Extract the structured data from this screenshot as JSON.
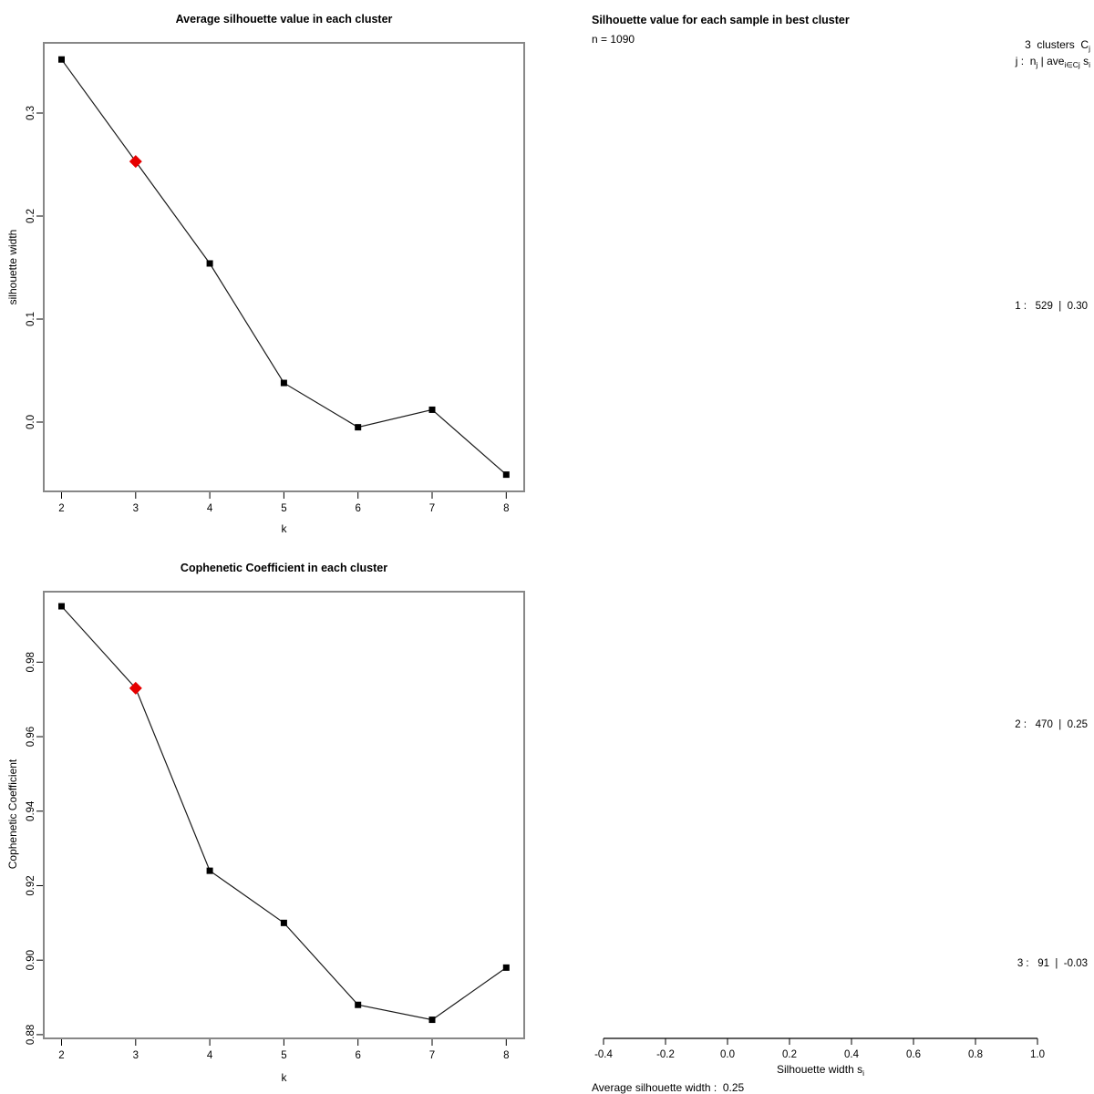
{
  "figure": {
    "background": "#ffffff",
    "line_color": "#1a1a1a",
    "point_color": "#000000",
    "highlight_color": "#e60000",
    "box_color": "#878787"
  },
  "chart_data": [
    {
      "id": "avg-silhouette",
      "type": "line",
      "title": "Average silhouette value in each cluster",
      "xlabel": "k",
      "ylabel": "silhouette width",
      "x": [
        2,
        3,
        4,
        5,
        6,
        7,
        8
      ],
      "y": [
        0.352,
        0.253,
        0.154,
        0.038,
        -0.005,
        0.012,
        -0.051
      ],
      "highlight_index": 1,
      "highlight_x": 3,
      "marker": "filled-square",
      "highlight_marker": "filled-diamond",
      "xticks": [
        2,
        3,
        4,
        5,
        6,
        7,
        8
      ],
      "xtick_labels": [
        "2",
        "3",
        "4",
        "5",
        "6",
        "7",
        "8"
      ],
      "yticks": [
        0.0,
        0.1,
        0.2,
        0.3
      ],
      "ytick_labels": [
        "0.0",
        "0.1",
        "0.2",
        "0.3"
      ],
      "xlim": [
        1.76,
        8.24
      ],
      "ylim": [
        -0.067,
        0.368
      ],
      "grid": false
    },
    {
      "id": "cophenetic",
      "type": "line",
      "title": "Cophenetic Coefficient in each cluster",
      "xlabel": "k",
      "ylabel": "Cophenetic Coefficient",
      "x": [
        2,
        3,
        4,
        5,
        6,
        7,
        8
      ],
      "y": [
        0.995,
        0.973,
        0.924,
        0.91,
        0.888,
        0.884,
        0.898
      ],
      "highlight_index": 1,
      "highlight_x": 3,
      "marker": "filled-square",
      "highlight_marker": "filled-diamond",
      "xticks": [
        2,
        3,
        4,
        5,
        6,
        7,
        8
      ],
      "xtick_labels": [
        "2",
        "3",
        "4",
        "5",
        "6",
        "7",
        "8"
      ],
      "yticks": [
        0.88,
        0.9,
        0.92,
        0.94,
        0.96,
        0.98
      ],
      "ytick_labels": [
        "0.88",
        "0.90",
        "0.92",
        "0.94",
        "0.96",
        "0.98"
      ],
      "xlim": [
        1.76,
        8.24
      ],
      "ylim": [
        0.879,
        0.9995
      ],
      "grid": false
    },
    {
      "id": "silhouette-best-cluster",
      "type": "silhouette",
      "title": "Silhouette value for each sample in best cluster",
      "n": 1090,
      "n_text": "n = 1090",
      "k_clusters": 3,
      "header": {
        "line1_main": "3  clusters  C",
        "line1_sub": "j",
        "line2_parts": [
          "j :  n",
          "j",
          " | ave",
          "i∈Cj",
          " s",
          "i"
        ]
      },
      "cluster_rows": [
        "1 :   529  |  0.30",
        "2 :   470  |  0.25",
        "3 :   91  |  -0.03"
      ],
      "cluster_stats": [
        {
          "j": 1,
          "n_j": 529,
          "ave_sil_width": 0.3
        },
        {
          "j": 2,
          "n_j": 470,
          "ave_sil_width": 0.25
        },
        {
          "j": 3,
          "n_j": 91,
          "ave_sil_width": -0.03
        }
      ],
      "xticks": [
        -0.4,
        -0.2,
        0.0,
        0.2,
        0.4,
        0.6,
        0.8,
        1.0
      ],
      "xtick_labels": [
        "-0.4",
        "-0.2",
        "0.0",
        "0.2",
        "0.4",
        "0.6",
        "0.8",
        "1.0"
      ],
      "xlabel_main": "Silhouette width s",
      "xlabel_sub": "i",
      "footer": "Average silhouette width :  0.25",
      "average_silhouette_width": 0.25
    }
  ]
}
